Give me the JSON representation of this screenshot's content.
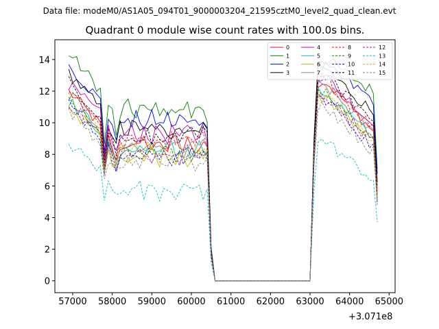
{
  "chart_data": {
    "type": "line",
    "suptitle": "Data file: modeM0/AS1A05_094T01_9000003204_21595cztM0_level2_quad_clean.evt",
    "title": "Quadrant 0 module wise count rates with 100.0s bins.",
    "xlabel": "",
    "ylabel": "",
    "x_offset_label": "+3.071e8",
    "xlim": [
      56550,
      65150
    ],
    "ylim": [
      -0.75,
      15.25
    ],
    "xticks": [
      57000,
      58000,
      59000,
      60000,
      61000,
      62000,
      63000,
      64000,
      65000
    ],
    "xtick_labels": [
      "57000",
      "58000",
      "59000",
      "60000",
      "61000",
      "62000",
      "63000",
      "64000",
      "65000"
    ],
    "yticks": [
      0,
      2,
      4,
      6,
      8,
      10,
      12,
      14
    ],
    "ytick_labels": [
      "0",
      "2",
      "4",
      "6",
      "8",
      "10",
      "12",
      "14"
    ],
    "grid": false,
    "legend_position": "top-right",
    "bin_size_s": 100,
    "segments": [
      {
        "start": 56900,
        "end": 64750,
        "gap_start": 60450,
        "gap_end": 63050
      }
    ],
    "series": [
      {
        "name": "0",
        "color": "#ff0000",
        "style": "solid",
        "levels": {
          "a": 12.0,
          "dip": 7.0,
          "b": 8.6,
          "c": 12.6,
          "d": 9.2
        }
      },
      {
        "name": "1",
        "color": "#008000",
        "style": "solid",
        "levels": {
          "a": 14.4,
          "dip": 8.6,
          "b": 10.8,
          "c": 14.0,
          "d": 11.8
        }
      },
      {
        "name": "2",
        "color": "#0000ff",
        "style": "solid",
        "levels": {
          "a": 13.6,
          "dip": 8.2,
          "b": 10.1,
          "c": 13.5,
          "d": 11.3
        }
      },
      {
        "name": "3",
        "color": "#000000",
        "style": "solid",
        "levels": {
          "a": 13.2,
          "dip": 8.0,
          "b": 9.6,
          "c": 13.4,
          "d": 10.4
        }
      },
      {
        "name": "4",
        "color": "#bf00bf",
        "style": "solid",
        "levels": {
          "a": 12.4,
          "dip": 7.6,
          "b": 9.3,
          "c": 12.9,
          "d": 9.6
        }
      },
      {
        "name": "5",
        "color": "#00bfbf",
        "style": "solid",
        "levels": {
          "a": 11.4,
          "dip": 6.9,
          "b": 8.3,
          "c": 11.9,
          "d": 8.7
        }
      },
      {
        "name": "6",
        "color": "#bfbf00",
        "style": "solid",
        "levels": {
          "a": 11.0,
          "dip": 6.7,
          "b": 7.9,
          "c": 11.6,
          "d": 8.5
        }
      },
      {
        "name": "7",
        "color": "#808080",
        "style": "solid",
        "levels": {
          "a": 11.8,
          "dip": 7.0,
          "b": 8.5,
          "c": 12.3,
          "d": 9.1
        }
      },
      {
        "name": "8",
        "color": "#ff0000",
        "style": "dashed",
        "levels": {
          "a": 12.1,
          "dip": 7.1,
          "b": 8.8,
          "c": 12.8,
          "d": 9.4
        }
      },
      {
        "name": "9",
        "color": "#008000",
        "style": "dashed",
        "levels": {
          "a": 11.6,
          "dip": 6.8,
          "b": 8.2,
          "c": 12.1,
          "d": 8.8
        }
      },
      {
        "name": "10",
        "color": "#0000ff",
        "style": "dashed",
        "levels": {
          "a": 11.2,
          "dip": 6.6,
          "b": 7.9,
          "c": 11.5,
          "d": 8.2
        }
      },
      {
        "name": "11",
        "color": "#000000",
        "style": "dashed",
        "levels": {
          "a": 12.6,
          "dip": 7.5,
          "b": 9.1,
          "c": 12.9,
          "d": 9.9
        }
      },
      {
        "name": "12",
        "color": "#bf00bf",
        "style": "dashed",
        "levels": {
          "a": 11.3,
          "dip": 6.7,
          "b": 8.0,
          "c": 11.7,
          "d": 8.5
        }
      },
      {
        "name": "13",
        "color": "#00bfbf",
        "style": "dashed",
        "levels": {
          "a": 8.7,
          "dip": 5.1,
          "b": 5.8,
          "c": 8.8,
          "d": 6.2
        }
      },
      {
        "name": "14",
        "color": "#bfbf00",
        "style": "dashed",
        "levels": {
          "a": 11.5,
          "dip": 6.8,
          "b": 8.1,
          "c": 11.9,
          "d": 8.6
        }
      },
      {
        "name": "15",
        "color": "#808080",
        "style": "dashed",
        "levels": {
          "a": 10.8,
          "dip": 6.3,
          "b": 7.5,
          "c": 11.1,
          "d": 7.9
        }
      }
    ]
  }
}
